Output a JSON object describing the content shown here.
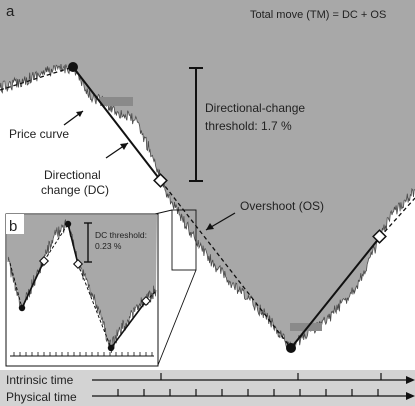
{
  "figure": {
    "panel_a_letter": "a",
    "panel_b_letter": "b",
    "header_text": "Total move (TM) = DC + OS"
  },
  "labels": {
    "price_curve": "Price curve",
    "dc_line1": "Directional",
    "dc_line2": "change (DC)",
    "threshold_line1": "Directional-change",
    "threshold_line2": "threshold: 1.7 %",
    "overshoot": "Overshoot (OS)"
  },
  "inset": {
    "threshold_line1": "DC threshold:",
    "threshold_line2": "0.23 %"
  },
  "timelines": {
    "intrinsic": "Intrinsic time",
    "physical": "Physical time"
  },
  "colors": {
    "background": "#d3d3d3",
    "fill_above_curve": "#a8a8a8",
    "curve": "#4a4a4a",
    "line": "#111111"
  }
}
